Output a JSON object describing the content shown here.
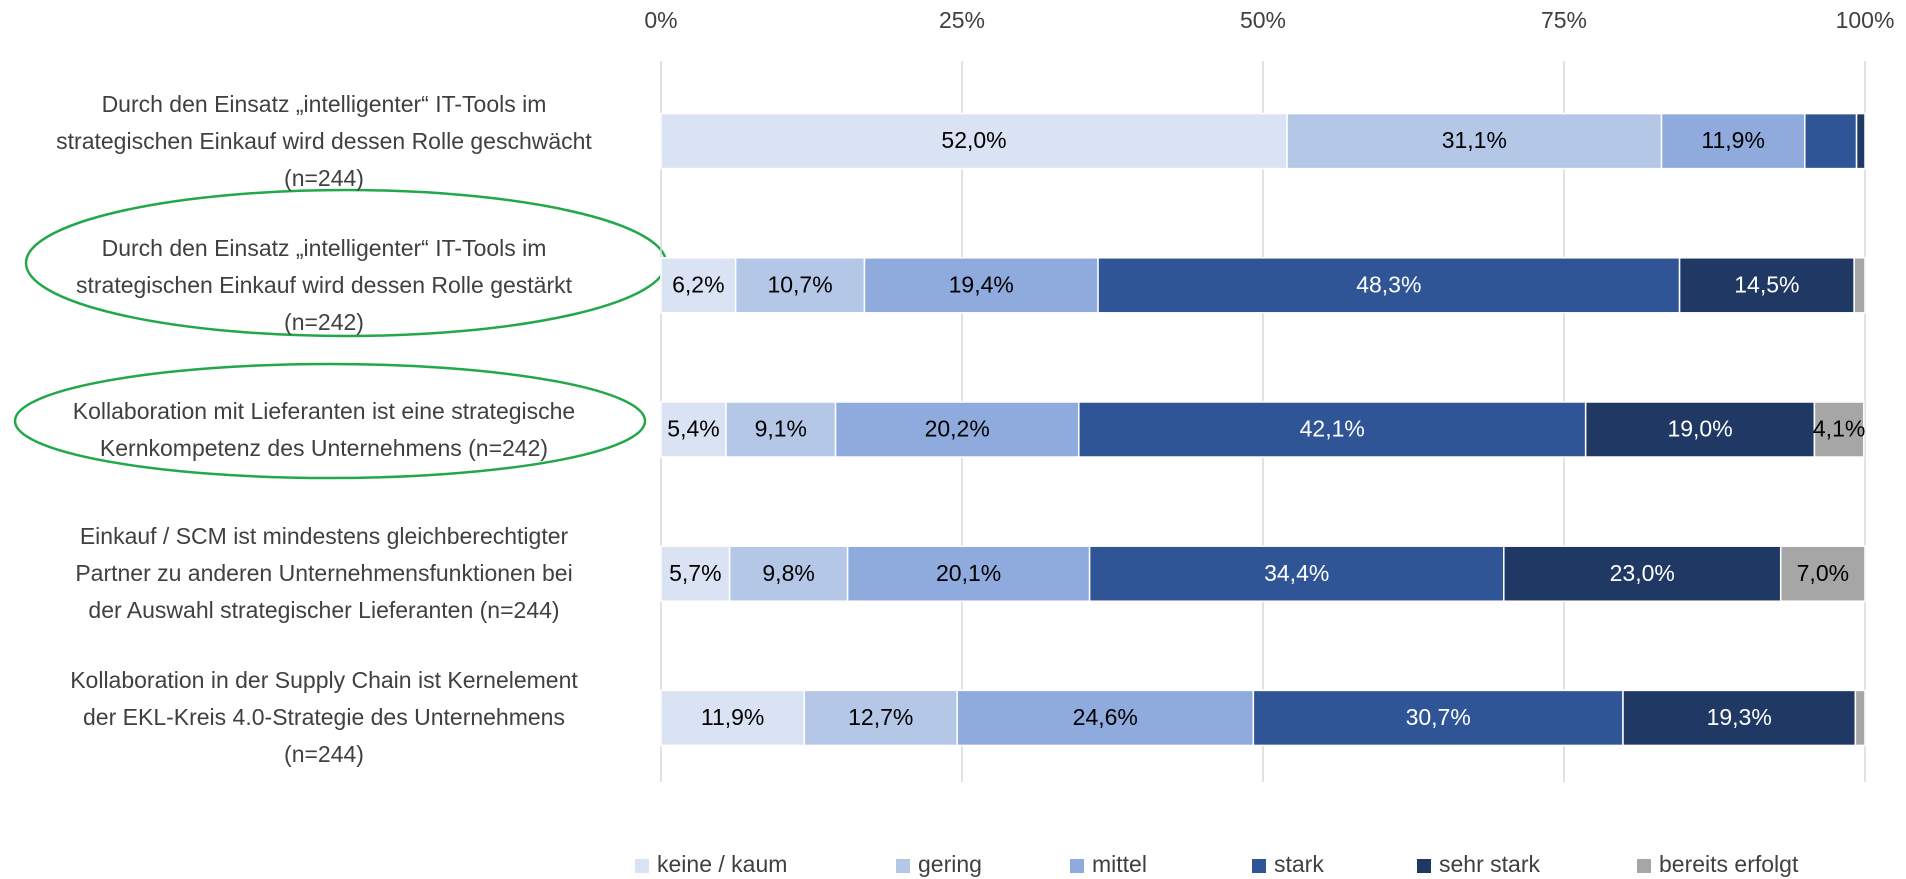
{
  "chart_data": {
    "type": "stacked_bar_horizontal",
    "categories": [
      "Durch den Einsatz „intelligenter“ IT-Tools im\nstrategischen Einkauf wird dessen Rolle geschwächt\n(n=244)",
      "Durch den Einsatz „intelligenter“ IT-Tools im\nstrategischen Einkauf wird dessen Rolle gestärkt\n(n=242)",
      "Kollaboration mit Lieferanten ist eine strategische\nKernkompetenz des Unternehmens (n=242)",
      "Einkauf / SCM ist mindestens gleichberechtigter\nPartner zu anderen Unternehmensfunktionen bei\nder Auswahl strategischer Lieferanten (n=244)",
      "Kollaboration in der Supply Chain ist Kernelement\nder EKL-Kreis 4.0-Strategie des Unternehmens\n(n=244)"
    ],
    "series": [
      {
        "name": "keine / kaum",
        "color": "#dae3f3",
        "values": [
          52.0,
          6.2,
          5.4,
          5.7,
          11.9
        ],
        "value_labels": [
          "52,0%",
          "6,2%",
          "5,4%",
          "5,7%",
          "11,9%"
        ]
      },
      {
        "name": "gering",
        "color": "#b4c7e7",
        "values": [
          31.1,
          10.7,
          9.1,
          9.8,
          12.7
        ],
        "value_labels": [
          "31,1%",
          "10,7%",
          "9,1%",
          "9,8%",
          "12,7%"
        ]
      },
      {
        "name": "mittel",
        "color": "#8faadc",
        "values": [
          11.9,
          19.4,
          20.2,
          20.1,
          24.6
        ],
        "value_labels": [
          "11,9%",
          "19,4%",
          "20,2%",
          "20,1%",
          "24,6%"
        ]
      },
      {
        "name": "stark",
        "color": "#2f5597",
        "values": [
          4.3,
          48.3,
          42.1,
          34.4,
          30.7
        ],
        "value_labels": [
          null,
          "48,3%",
          "42,1%",
          "34,4%",
          "30,7%"
        ]
      },
      {
        "name": "sehr stark",
        "color": "#203864",
        "values": [
          0.7,
          14.5,
          19.0,
          23.0,
          19.3
        ],
        "value_labels": [
          null,
          "14,5%",
          "19,0%",
          "23,0%",
          "19,3%"
        ]
      },
      {
        "name": "bereits erfolgt",
        "color": "#a6a6a6",
        "values": [
          0,
          0.9,
          4.1,
          7.0,
          0.8
        ],
        "value_labels": [
          null,
          null,
          "4,1%",
          "7,0%",
          null
        ]
      }
    ],
    "xlim": [
      0,
      100
    ],
    "xticks": [
      {
        "value": 0,
        "label": "0%"
      },
      {
        "value": 25,
        "label": "25%"
      },
      {
        "value": 50,
        "label": "50%"
      },
      {
        "value": 75,
        "label": "75%"
      },
      {
        "value": 100,
        "label": "100%"
      }
    ],
    "grid": true,
    "legend": "bottom"
  }
}
